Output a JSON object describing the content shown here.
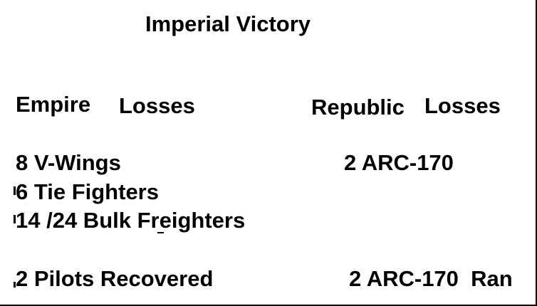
{
  "title": "Imperial Victory",
  "empire": {
    "heading_word1": "Empire",
    "heading_word2": "Losses",
    "losses": [
      "8 V-Wings",
      "6 Tie Fighters",
      "14 /24 Bulk Freighters"
    ],
    "note": "2 Pilots Recovered"
  },
  "republic": {
    "heading_word1": "Republic",
    "heading_word2": "Losses",
    "losses": [
      "2 ARC-170"
    ],
    "note": "2 ARC-170  Ran"
  }
}
